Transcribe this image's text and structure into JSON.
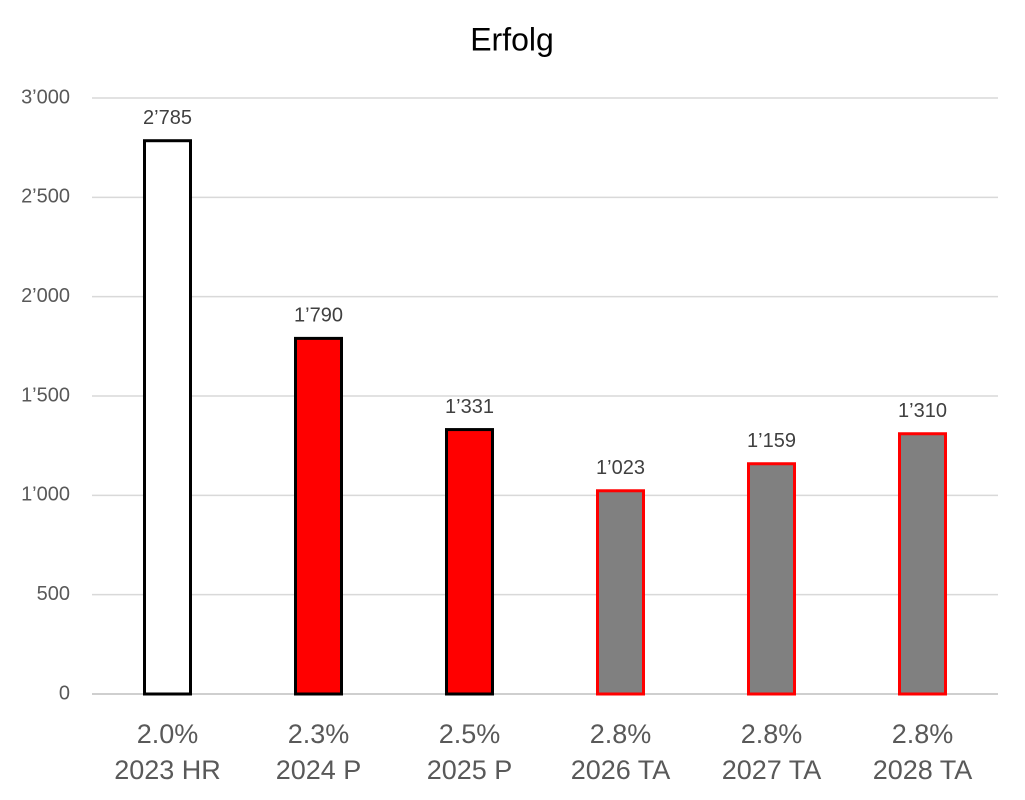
{
  "chart_data": {
    "type": "bar",
    "title": "Erfolg",
    "categories": [
      "2023 HR",
      "2024 P",
      "2025 P",
      "2026 TA",
      "2027 TA",
      "2028 TA"
    ],
    "category_top_labels": [
      "2.0%",
      "2.3%",
      "2.5%",
      "2.8%",
      "2.8%",
      "2.8%"
    ],
    "values": [
      2785,
      1790,
      1331,
      1023,
      1159,
      1310
    ],
    "value_labels": [
      "2’785",
      "1’790",
      "1’331",
      "1’023",
      "1’159",
      "1’310"
    ],
    "colors": [
      "#ffffff",
      "#ff0000",
      "#ff0000",
      "#808080",
      "#808080",
      "#808080"
    ],
    "edge_colors": [
      "#000000",
      "#000000",
      "#000000",
      "#ff0000",
      "#ff0000",
      "#ff0000"
    ],
    "ylim": [
      0,
      3000
    ],
    "yticks": [
      0,
      500,
      {
        "value": 1000,
        "label": "1’000"
      },
      {
        "value": 1500,
        "label": "1’500"
      },
      {
        "value": 2000,
        "label": "2’000"
      },
      {
        "value": 2500,
        "label": "2’500"
      },
      {
        "value": 3000,
        "label": "3’000"
      }
    ],
    "grid": true
  }
}
